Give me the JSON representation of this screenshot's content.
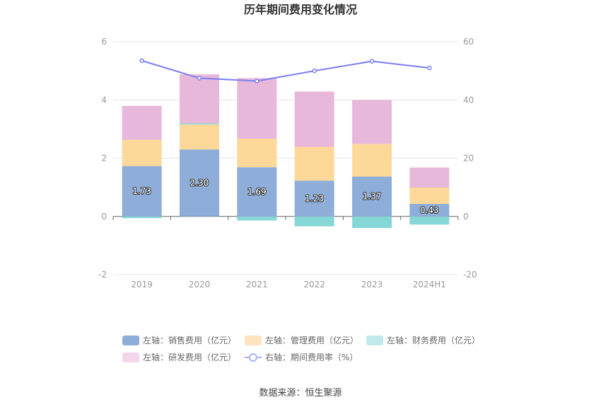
{
  "chart_data": {
    "type": "bar",
    "title": "历年期间费用变化情况",
    "categories": [
      "2019",
      "2020",
      "2021",
      "2022",
      "2023",
      "2024H1"
    ],
    "left_axis": {
      "ylim": [
        -2,
        6
      ],
      "ticks": [
        "-2",
        "0",
        "2",
        "4",
        "6"
      ]
    },
    "right_axis": {
      "ylim": [
        -20,
        60
      ],
      "ticks": [
        "-20",
        "0",
        "20",
        "40",
        "60"
      ]
    },
    "series": [
      {
        "name": "左轴：销售费用（亿元）",
        "type": "bar",
        "stack": "left",
        "color": "#8eadd8",
        "values": [
          1.73,
          2.3,
          1.69,
          1.23,
          1.37,
          0.43
        ],
        "labels": [
          "1.73",
          "2.30",
          "1.69",
          "1.23",
          "1.37",
          "0.43"
        ]
      },
      {
        "name": "左轴：管理费用（亿元）",
        "type": "bar",
        "stack": "left",
        "color": "#fed898",
        "values": [
          0.9,
          0.86,
          0.98,
          1.16,
          1.12,
          0.56
        ]
      },
      {
        "name": "左轴：财务费用（亿元）",
        "type": "bar",
        "stack": "left",
        "color": "#86d6d8",
        "values": [
          -0.06,
          0.04,
          -0.14,
          -0.34,
          -0.4,
          -0.28
        ]
      },
      {
        "name": "左轴：研发费用（亿元）",
        "type": "bar",
        "stack": "left",
        "color": "#e8b8da",
        "values": [
          1.17,
          1.68,
          2.08,
          1.9,
          1.51,
          0.69
        ]
      },
      {
        "name": "右轴：期间费用率（%）",
        "type": "line",
        "axis": "right",
        "color": "#7b7ff0",
        "values": [
          53.5,
          47.5,
          46.5,
          50.0,
          53.3,
          51.0
        ]
      }
    ],
    "legend_position": "bottom",
    "grid": true
  },
  "source": "数据来源：恒生聚源"
}
